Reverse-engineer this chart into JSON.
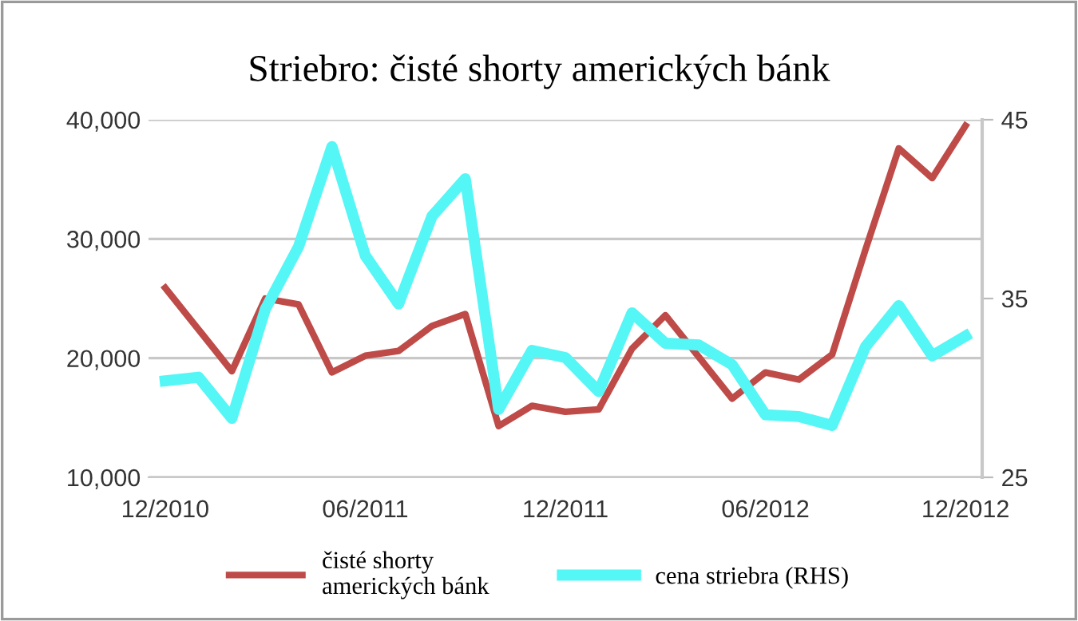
{
  "chart_data": {
    "type": "line",
    "title": "Striebro: čisté shorty amerických bánk",
    "categories": [
      "12/2010",
      null,
      null,
      null,
      null,
      null,
      "06/2011",
      null,
      null,
      null,
      null,
      null,
      "12/2011",
      null,
      null,
      null,
      null,
      null,
      "06/2012",
      null,
      null,
      null,
      null,
      null,
      "12/2012"
    ],
    "series": [
      {
        "name": "čisté shorty\namerických bánk",
        "color": "#be4b48",
        "values": [
          25900,
          22400,
          18900,
          25000,
          24500,
          18800,
          20200,
          20600,
          22700,
          23700,
          14300,
          16000,
          15500,
          15700,
          20800,
          23600,
          20100,
          16600,
          18800,
          18200,
          20300,
          29100,
          37600,
          35100,
          39500
        ]
      },
      {
        "name": "cena striebra (RHS)",
        "color": "#55f6f6",
        "axis": "y2",
        "values": [
          30.4,
          30.6,
          28.3,
          34.4,
          37.9,
          43.5,
          37.4,
          34.7,
          39.6,
          41.7,
          28.8,
          32.1,
          31.7,
          29.8,
          34.2,
          32.5,
          32.4,
          31.3,
          28.5,
          28.4,
          27.9,
          32.3,
          34.6,
          31.8,
          32.9
        ]
      }
    ],
    "ylim": [
      10000,
      40000
    ],
    "yticks": [
      {
        "value": 10000,
        "label": "10,000"
      },
      {
        "value": 20000,
        "label": "20,000"
      },
      {
        "value": 30000,
        "label": "30,000"
      },
      {
        "value": 40000,
        "label": "40,000"
      }
    ],
    "y2lim": [
      25,
      45
    ],
    "y2ticks": [
      25,
      35,
      45
    ],
    "grid": "y",
    "legend": "bottom",
    "marker": "none",
    "line_style": "solid"
  }
}
